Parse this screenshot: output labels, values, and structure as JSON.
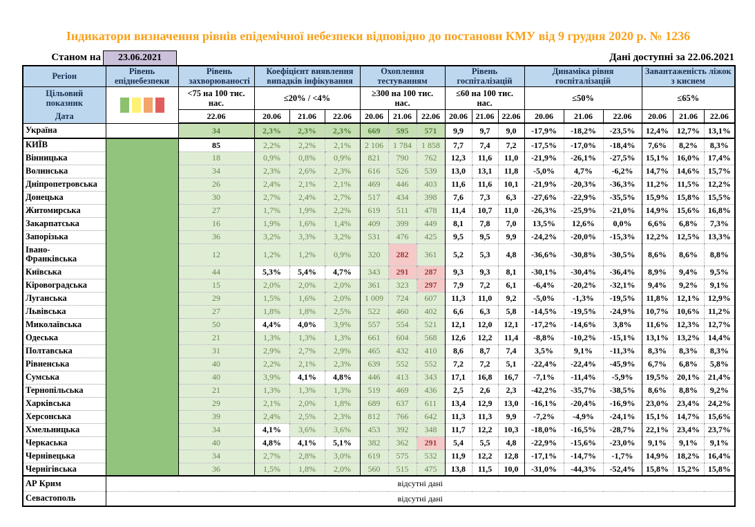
{
  "title": "Індикатори визначення рівнів епідемічної небезпеки відповідно до постанови КМУ від 9 грудня 2020 р. № 1236",
  "as_of_label": "Станом на",
  "as_of_date": "23.06.2021",
  "available_label": "Дані доступні за  22.06.2021",
  "header": {
    "region": "Регіон",
    "target_label": "Цільовий показник",
    "date_label": "Дата",
    "groups": [
      {
        "title": "Рівень епіднебезпеки",
        "threshold": "",
        "dates": []
      },
      {
        "title": "Рівень захворюваності",
        "threshold": "<75 на 100 тис. нас.",
        "dates": [
          "22.06"
        ]
      },
      {
        "title": "Коефіцієнт виявлення випадків інфікування",
        "threshold": "≤20% / <4%",
        "dates": [
          "20.06",
          "21.06",
          "22.06"
        ]
      },
      {
        "title": "Охоплення тестуванням",
        "threshold": "≥300 на 100 тис. нас.",
        "dates": [
          "20.06",
          "21.06",
          "22.06"
        ]
      },
      {
        "title": "Рівень госпіталізацій",
        "threshold": "≤60 на 100 тис. нас.",
        "dates": [
          "20.06",
          "21.06",
          "22.06"
        ]
      },
      {
        "title": "Динаміка рівня госпіталізацій",
        "threshold": "≤50%",
        "dates": [
          "20.06",
          "21.06",
          "22.06"
        ]
      },
      {
        "title": "Завантаженість ліжок з киснем",
        "threshold": "≤65%",
        "dates": [
          "20.06",
          "21.06",
          "22.06"
        ]
      }
    ]
  },
  "legend_colors": [
    "#8DC06C",
    "#FFF173",
    "#F2A469",
    "#DF5F5F"
  ],
  "thresholds": {
    "incidence_max": 75,
    "detection_max_pct": 4,
    "testing_min": 300
  },
  "colors": {
    "title_orange": "#F8A11C",
    "header_blue": "#BDD7EE",
    "header_text": "#1B3054",
    "light_green": "#DFEDD5",
    "ukraine_green": "#C6E0B4",
    "column_green": "#92C47E",
    "value_green": "#66834B",
    "ukraine_value_green": "#538135",
    "pink": "#F5C9C7",
    "red_text": "#9C3734",
    "lavender": "#CCC1DA"
  },
  "rows": [
    {
      "name": "Україна",
      "incidence": "34",
      "detection": [
        "2,3%",
        "2,3%",
        "2,3%"
      ],
      "testing": [
        "669",
        "595",
        "571"
      ],
      "hosp": [
        "9,9",
        "9,7",
        "9,0"
      ],
      "dynamics": [
        "-17,9%",
        "-18,2%",
        "-23,5%"
      ],
      "oxygen": [
        "12,4%",
        "12,7%",
        "13,1%"
      ]
    },
    {
      "name": "КИЇВ",
      "incidence": "85",
      "detection": [
        "2,2%",
        "2,2%",
        "2,1%"
      ],
      "testing": [
        "2 106",
        "1 784",
        "1 858"
      ],
      "hosp": [
        "7,7",
        "7,4",
        "7,2"
      ],
      "dynamics": [
        "-17,5%",
        "-17,0%",
        "-18,4%"
      ],
      "oxygen": [
        "7,6%",
        "8,2%",
        "8,3%"
      ]
    },
    {
      "name": "Вінницька",
      "incidence": "18",
      "detection": [
        "0,9%",
        "0,8%",
        "0,9%"
      ],
      "testing": [
        "821",
        "790",
        "762"
      ],
      "hosp": [
        "12,3",
        "11,6",
        "11,0"
      ],
      "dynamics": [
        "-21,9%",
        "-26,1%",
        "-27,5%"
      ],
      "oxygen": [
        "15,1%",
        "16,0%",
        "17,4%"
      ]
    },
    {
      "name": "Волинська",
      "incidence": "34",
      "detection": [
        "2,3%",
        "2,6%",
        "2,3%"
      ],
      "testing": [
        "616",
        "526",
        "539"
      ],
      "hosp": [
        "13,0",
        "13,1",
        "11,8"
      ],
      "dynamics": [
        "-5,0%",
        "4,7%",
        "-6,2%"
      ],
      "oxygen": [
        "14,7%",
        "14,6%",
        "15,7%"
      ]
    },
    {
      "name": "Дніпропетровська",
      "incidence": "26",
      "detection": [
        "2,4%",
        "2,1%",
        "2,1%"
      ],
      "testing": [
        "469",
        "446",
        "403"
      ],
      "hosp": [
        "11,6",
        "11,6",
        "10,1"
      ],
      "dynamics": [
        "-21,9%",
        "-20,3%",
        "-36,3%"
      ],
      "oxygen": [
        "11,2%",
        "11,5%",
        "12,2%"
      ]
    },
    {
      "name": "Донецька",
      "incidence": "30",
      "detection": [
        "2,7%",
        "2,4%",
        "2,7%"
      ],
      "testing": [
        "517",
        "434",
        "398"
      ],
      "hosp": [
        "7,6",
        "7,3",
        "6,3"
      ],
      "dynamics": [
        "-27,6%",
        "-22,9%",
        "-35,5%"
      ],
      "oxygen": [
        "15,9%",
        "15,8%",
        "15,5%"
      ]
    },
    {
      "name": "Житомирська",
      "incidence": "27",
      "detection": [
        "1,7%",
        "1,9%",
        "2,2%"
      ],
      "testing": [
        "619",
        "511",
        "478"
      ],
      "hosp": [
        "11,4",
        "10,7",
        "11,0"
      ],
      "dynamics": [
        "-26,3%",
        "-25,9%",
        "-21,0%"
      ],
      "oxygen": [
        "14,9%",
        "15,6%",
        "16,8%"
      ]
    },
    {
      "name": "Закарпатська",
      "incidence": "16",
      "detection": [
        "1,9%",
        "1,6%",
        "1,4%"
      ],
      "testing": [
        "409",
        "399",
        "449"
      ],
      "hosp": [
        "8,1",
        "7,8",
        "7,0"
      ],
      "dynamics": [
        "13,5%",
        "12,6%",
        "0,0%"
      ],
      "oxygen": [
        "6,6%",
        "6,8%",
        "7,3%"
      ]
    },
    {
      "name": "Запорізька",
      "incidence": "36",
      "detection": [
        "3,2%",
        "3,3%",
        "3,2%"
      ],
      "testing": [
        "531",
        "476",
        "425"
      ],
      "hosp": [
        "9,5",
        "9,5",
        "9,9"
      ],
      "dynamics": [
        "-24,2%",
        "-20,0%",
        "-15,3%"
      ],
      "oxygen": [
        "12,2%",
        "12,5%",
        "13,3%"
      ]
    },
    {
      "name": "Івано-Франківська",
      "incidence": "12",
      "detection": [
        "1,2%",
        "1,2%",
        "0,9%"
      ],
      "testing": [
        "320",
        "282",
        "361"
      ],
      "hosp": [
        "5,2",
        "5,3",
        "4,8"
      ],
      "dynamics": [
        "-36,6%",
        "-30,8%",
        "-30,5%"
      ],
      "oxygen": [
        "8,6%",
        "8,6%",
        "8,8%"
      ]
    },
    {
      "name": "Київська",
      "incidence": "44",
      "detection": [
        "5,3%",
        "5,4%",
        "4,7%"
      ],
      "testing": [
        "343",
        "291",
        "287"
      ],
      "hosp": [
        "9,3",
        "9,3",
        "8,1"
      ],
      "dynamics": [
        "-30,1%",
        "-30,4%",
        "-36,4%"
      ],
      "oxygen": [
        "8,9%",
        "9,4%",
        "9,5%"
      ]
    },
    {
      "name": "Кіровоградська",
      "incidence": "15",
      "detection": [
        "2,0%",
        "2,0%",
        "2,0%"
      ],
      "testing": [
        "361",
        "323",
        "297"
      ],
      "hosp": [
        "7,9",
        "7,2",
        "6,1"
      ],
      "dynamics": [
        "-6,4%",
        "-20,2%",
        "-32,1%"
      ],
      "oxygen": [
        "9,4%",
        "9,2%",
        "9,1%"
      ]
    },
    {
      "name": "Луганська",
      "incidence": "29",
      "detection": [
        "1,5%",
        "1,6%",
        "2,0%"
      ],
      "testing": [
        "1 009",
        "724",
        "607"
      ],
      "hosp": [
        "11,3",
        "11,0",
        "9,2"
      ],
      "dynamics": [
        "-5,0%",
        "-1,3%",
        "-19,5%"
      ],
      "oxygen": [
        "11,8%",
        "12,1%",
        "12,9%"
      ]
    },
    {
      "name": "Львівська",
      "incidence": "27",
      "detection": [
        "1,8%",
        "1,8%",
        "2,5%"
      ],
      "testing": [
        "522",
        "460",
        "402"
      ],
      "hosp": [
        "6,6",
        "6,3",
        "5,8"
      ],
      "dynamics": [
        "-14,5%",
        "-19,5%",
        "-24,9%"
      ],
      "oxygen": [
        "10,7%",
        "10,6%",
        "11,2%"
      ]
    },
    {
      "name": "Миколаївська",
      "incidence": "50",
      "detection": [
        "4,4%",
        "4,0%",
        "3,9%"
      ],
      "testing": [
        "557",
        "554",
        "521"
      ],
      "hosp": [
        "12,1",
        "12,0",
        "12,1"
      ],
      "dynamics": [
        "-17,2%",
        "-14,6%",
        "3,8%"
      ],
      "oxygen": [
        "11,6%",
        "12,3%",
        "12,7%"
      ]
    },
    {
      "name": "Одеська",
      "incidence": "21",
      "detection": [
        "1,3%",
        "1,3%",
        "1,3%"
      ],
      "testing": [
        "661",
        "604",
        "568"
      ],
      "hosp": [
        "12,6",
        "12,2",
        "11,4"
      ],
      "dynamics": [
        "-8,8%",
        "-10,2%",
        "-15,1%"
      ],
      "oxygen": [
        "13,1%",
        "13,2%",
        "14,4%"
      ]
    },
    {
      "name": "Полтавська",
      "incidence": "31",
      "detection": [
        "2,9%",
        "2,7%",
        "2,9%"
      ],
      "testing": [
        "465",
        "432",
        "410"
      ],
      "hosp": [
        "8,6",
        "8,7",
        "7,4"
      ],
      "dynamics": [
        "3,5%",
        "9,1%",
        "-11,3%"
      ],
      "oxygen": [
        "8,3%",
        "8,3%",
        "8,3%"
      ]
    },
    {
      "name": "Рівненська",
      "incidence": "40",
      "detection": [
        "2,2%",
        "2,1%",
        "2,3%"
      ],
      "testing": [
        "639",
        "552",
        "552"
      ],
      "hosp": [
        "7,2",
        "7,2",
        "5,1"
      ],
      "dynamics": [
        "-22,4%",
        "-22,4%",
        "-45,9%"
      ],
      "oxygen": [
        "6,7%",
        "6,8%",
        "5,8%"
      ]
    },
    {
      "name": "Сумська",
      "incidence": "40",
      "detection": [
        "3,9%",
        "4,1%",
        "4,8%"
      ],
      "testing": [
        "446",
        "413",
        "343"
      ],
      "hosp": [
        "17,1",
        "16,8",
        "16,7"
      ],
      "dynamics": [
        "-7,1%",
        "-11,4%",
        "-5,9%"
      ],
      "oxygen": [
        "19,5%",
        "20,1%",
        "21,4%"
      ]
    },
    {
      "name": "Тернопільська",
      "incidence": "21",
      "detection": [
        "1,3%",
        "1,3%",
        "1,3%"
      ],
      "testing": [
        "519",
        "469",
        "436"
      ],
      "hosp": [
        "2,5",
        "2,6",
        "2,3"
      ],
      "dynamics": [
        "-42,2%",
        "-35,7%",
        "-38,5%"
      ],
      "oxygen": [
        "8,6%",
        "8,8%",
        "9,2%"
      ]
    },
    {
      "name": "Харківська",
      "incidence": "29",
      "detection": [
        "2,1%",
        "2,0%",
        "1,8%"
      ],
      "testing": [
        "689",
        "637",
        "611"
      ],
      "hosp": [
        "13,4",
        "12,9",
        "13,0"
      ],
      "dynamics": [
        "-16,1%",
        "-20,4%",
        "-16,9%"
      ],
      "oxygen": [
        "23,0%",
        "23,4%",
        "24,2%"
      ]
    },
    {
      "name": "Херсонська",
      "incidence": "39",
      "detection": [
        "2,4%",
        "2,5%",
        "2,3%"
      ],
      "testing": [
        "812",
        "766",
        "642"
      ],
      "hosp": [
        "11,3",
        "11,3",
        "9,9"
      ],
      "dynamics": [
        "-7,2%",
        "-4,9%",
        "-24,1%"
      ],
      "oxygen": [
        "15,1%",
        "14,7%",
        "15,6%"
      ]
    },
    {
      "name": "Хмельницька",
      "incidence": "34",
      "detection": [
        "4,1%",
        "3,6%",
        "3,6%"
      ],
      "testing": [
        "453",
        "392",
        "348"
      ],
      "hosp": [
        "11,7",
        "12,2",
        "10,3"
      ],
      "dynamics": [
        "-18,0%",
        "-16,5%",
        "-28,7%"
      ],
      "oxygen": [
        "22,1%",
        "23,4%",
        "23,7%"
      ]
    },
    {
      "name": "Черкаська",
      "incidence": "40",
      "detection": [
        "4,8%",
        "4,1%",
        "5,1%"
      ],
      "testing": [
        "382",
        "362",
        "291"
      ],
      "hosp": [
        "5,4",
        "5,5",
        "4,8"
      ],
      "dynamics": [
        "-22,9%",
        "-15,6%",
        "-23,0%"
      ],
      "oxygen": [
        "9,1%",
        "9,1%",
        "9,1%"
      ]
    },
    {
      "name": "Чернівецька",
      "incidence": "34",
      "detection": [
        "2,7%",
        "2,8%",
        "3,0%"
      ],
      "testing": [
        "619",
        "575",
        "532"
      ],
      "hosp": [
        "11,9",
        "12,2",
        "12,8"
      ],
      "dynamics": [
        "-17,1%",
        "-14,7%",
        "-1,7%"
      ],
      "oxygen": [
        "14,9%",
        "18,2%",
        "16,4%"
      ]
    },
    {
      "name": "Чернігівська",
      "incidence": "36",
      "detection": [
        "1,5%",
        "1,8%",
        "2,0%"
      ],
      "testing": [
        "560",
        "515",
        "475"
      ],
      "hosp": [
        "13,8",
        "11,5",
        "10,0"
      ],
      "dynamics": [
        "-31,0%",
        "-44,3%",
        "-52,4%"
      ],
      "oxygen": [
        "15,8%",
        "15,2%",
        "15,8%"
      ]
    }
  ],
  "no_data_rows": [
    {
      "name": "АР Крим",
      "text": "відсутні дані"
    },
    {
      "name": "Севастополь",
      "text": "відсутні дані"
    }
  ]
}
